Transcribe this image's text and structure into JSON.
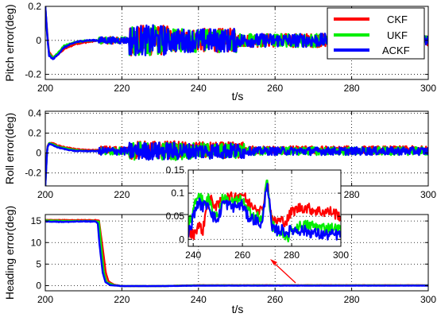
{
  "chart_data": [
    {
      "type": "line",
      "id": "pitch",
      "xlabel": "t/s",
      "ylabel": "Pitch error(deg)",
      "xlim": [
        200,
        300
      ],
      "ylim": [
        -0.23,
        0.2
      ],
      "xticks": [
        200,
        220,
        240,
        260,
        280,
        300
      ],
      "yticks": [
        -0.2,
        0,
        0.2
      ],
      "ytick_labels": [
        "-0.2",
        "0",
        "0.2"
      ],
      "grid": true,
      "legend_position": "top-right",
      "series": [
        {
          "name": "CKF",
          "color": "#ff0000",
          "x": [
            200,
            200.5,
            201,
            202,
            203,
            205,
            208,
            211,
            214,
            215,
            220,
            230,
            240,
            250,
            260,
            270,
            280,
            290,
            300
          ],
          "y": [
            0.2,
            0.04,
            -0.07,
            -0.1,
            -0.09,
            -0.05,
            -0.02,
            -0.01,
            0.0,
            0.0,
            0.0,
            0.0,
            0.0,
            0.0,
            0.0,
            0.0,
            0.0,
            0.0,
            0.0
          ]
        },
        {
          "name": "UKF",
          "color": "#00ee00",
          "x": [
            200,
            200.5,
            201,
            202,
            203,
            205,
            208,
            211,
            214,
            215,
            220,
            230,
            240,
            250,
            260,
            270,
            280,
            290,
            300
          ],
          "y": [
            0.2,
            0.03,
            -0.08,
            -0.1,
            -0.08,
            -0.03,
            -0.01,
            0.0,
            0.0,
            0.0,
            0.0,
            0.0,
            0.0,
            0.0,
            0.0,
            0.0,
            0.0,
            0.0,
            0.0
          ]
        },
        {
          "name": "ACKF",
          "color": "#0000ff",
          "x": [
            200,
            200.5,
            201,
            202,
            203,
            205,
            208,
            211,
            214,
            215,
            220,
            230,
            240,
            250,
            260,
            270,
            280,
            290,
            300
          ],
          "y": [
            0.2,
            0.03,
            -0.09,
            -0.11,
            -0.09,
            -0.04,
            -0.01,
            0.0,
            0.0,
            0.0,
            0.0,
            0.0,
            0.0,
            0.0,
            0.0,
            0.0,
            0.0,
            0.0,
            0.0
          ]
        }
      ]
    },
    {
      "type": "line",
      "id": "roll",
      "xlabel": "",
      "ylabel": "Roll error(deg)",
      "xlim": [
        200,
        300
      ],
      "ylim": [
        -0.33,
        0.42
      ],
      "xticks": [
        200,
        220,
        240,
        260,
        280,
        300
      ],
      "yticks": [
        -0.2,
        0,
        0.2,
        0.4
      ],
      "ytick_labels": [
        "-0.2",
        "0",
        "0.2",
        "0.4"
      ],
      "grid": true,
      "series": [
        {
          "name": "CKF",
          "color": "#ff0000",
          "x": [
            200,
            200.5,
            201,
            202,
            203,
            205,
            208,
            211,
            214,
            215,
            220,
            230,
            240,
            250,
            260,
            270,
            280,
            290,
            300
          ],
          "y": [
            -0.33,
            0.06,
            0.1,
            0.1,
            0.08,
            0.06,
            0.04,
            0.03,
            0.03,
            0.03,
            0.03,
            0.03,
            0.03,
            0.03,
            0.03,
            0.03,
            0.03,
            0.03,
            0.03
          ]
        },
        {
          "name": "UKF",
          "color": "#00ee00",
          "x": [
            200,
            200.5,
            201,
            202,
            203,
            205,
            208,
            211,
            214,
            215,
            220,
            230,
            240,
            250,
            260,
            270,
            280,
            290,
            300
          ],
          "y": [
            -0.33,
            0.05,
            0.1,
            0.09,
            0.07,
            0.05,
            0.03,
            0.02,
            0.02,
            0.02,
            0.02,
            0.02,
            0.02,
            0.02,
            0.02,
            0.02,
            0.02,
            0.02,
            0.02
          ]
        },
        {
          "name": "ACKF",
          "color": "#0000ff",
          "x": [
            200,
            200.5,
            201,
            202,
            203,
            205,
            208,
            211,
            214,
            215,
            220,
            230,
            240,
            250,
            260,
            270,
            280,
            290,
            300
          ],
          "y": [
            -0.33,
            0.05,
            0.09,
            0.08,
            0.06,
            0.04,
            0.02,
            0.02,
            0.02,
            0.02,
            0.02,
            0.02,
            0.02,
            0.02,
            0.02,
            0.02,
            0.02,
            0.02,
            0.02
          ]
        }
      ]
    },
    {
      "type": "line",
      "id": "roll_inset",
      "xlim": [
        238,
        300
      ],
      "ylim": [
        -0.015,
        0.15
      ],
      "xticks": [
        240,
        260,
        280,
        300
      ],
      "yticks": [
        0,
        0.05,
        0.1,
        0.15
      ],
      "ytick_labels": [
        "0",
        "0.05",
        "0.1",
        "0.15"
      ],
      "grid": true,
      "series": [
        {
          "name": "CKF",
          "color": "#ff0000",
          "x": [
            238,
            240,
            242,
            244,
            246,
            248,
            250,
            252,
            256,
            260,
            262,
            266,
            268,
            270,
            272,
            274,
            276,
            278,
            280,
            284,
            288,
            292,
            296,
            300
          ],
          "y": [
            0.02,
            0.01,
            0.03,
            0.02,
            0.09,
            0.08,
            0.07,
            0.09,
            0.09,
            0.1,
            0.08,
            0.07,
            0.06,
            0.13,
            0.04,
            0.04,
            0.04,
            0.04,
            0.06,
            0.07,
            0.065,
            0.06,
            0.06,
            0.05
          ]
        },
        {
          "name": "UKF",
          "color": "#00ee00",
          "x": [
            238,
            240,
            242,
            244,
            246,
            248,
            250,
            252,
            256,
            260,
            262,
            266,
            268,
            270,
            272,
            274,
            276,
            278,
            280,
            284,
            288,
            292,
            296,
            300
          ],
          "y": [
            0.03,
            0.06,
            0.1,
            0.08,
            0.09,
            0.06,
            0.05,
            0.09,
            0.08,
            0.085,
            0.06,
            0.05,
            0.04,
            0.13,
            0.03,
            0.02,
            0.01,
            0.0,
            0.02,
            0.03,
            0.03,
            0.025,
            0.025,
            0.02
          ]
        },
        {
          "name": "ACKF",
          "color": "#0000ff",
          "x": [
            238,
            240,
            242,
            244,
            246,
            248,
            250,
            252,
            256,
            260,
            262,
            266,
            268,
            270,
            272,
            274,
            276,
            278,
            280,
            284,
            288,
            292,
            296,
            300
          ],
          "y": [
            0.01,
            0.05,
            0.08,
            0.07,
            0.08,
            0.05,
            0.04,
            0.08,
            0.07,
            0.075,
            0.05,
            0.04,
            0.03,
            0.13,
            0.02,
            0.02,
            0.02,
            0.015,
            0.02,
            0.02,
            0.015,
            0.01,
            0.01,
            0.01
          ]
        }
      ]
    },
    {
      "type": "line",
      "id": "heading",
      "xlabel": "t/s",
      "ylabel": "Heading error(deg)",
      "xlim": [
        200,
        300
      ],
      "ylim": [
        -1.2,
        16.5
      ],
      "xticks": [
        200,
        220,
        240,
        260,
        280,
        300
      ],
      "yticks": [
        0,
        5,
        10,
        15
      ],
      "ytick_labels": [
        "0",
        "5",
        "10",
        "15"
      ],
      "grid": true,
      "series": [
        {
          "name": "CKF",
          "color": "#ff0000",
          "x": [
            200,
            205,
            210,
            213,
            214,
            214.8,
            215.8,
            216.5,
            218,
            220,
            230,
            240,
            260,
            280,
            300
          ],
          "y": [
            15.2,
            15.2,
            15.2,
            15.2,
            15.1,
            10,
            3,
            1,
            0.2,
            -0.1,
            -0.1,
            0.1,
            0.1,
            0.1,
            0.1
          ]
        },
        {
          "name": "UKF",
          "color": "#00ee00",
          "x": [
            200,
            205,
            210,
            213,
            214,
            214.5,
            215.3,
            216,
            218,
            220,
            230,
            240,
            260,
            280,
            300
          ],
          "y": [
            15.1,
            15.0,
            15.0,
            15.0,
            14.8,
            10,
            3,
            0.8,
            0.1,
            -0.1,
            -0.1,
            0.05,
            0.05,
            0.05,
            0.05
          ]
        },
        {
          "name": "ACKF",
          "color": "#0000ff",
          "x": [
            200,
            205,
            210,
            213,
            213.7,
            214.1,
            215,
            215.7,
            217,
            220,
            230,
            240,
            260,
            280,
            300
          ],
          "y": [
            14.9,
            14.8,
            14.9,
            14.9,
            14.5,
            10,
            3,
            0.8,
            0.1,
            -0.1,
            -0.1,
            0.0,
            0.0,
            0.0,
            0.0
          ]
        }
      ]
    }
  ]
}
